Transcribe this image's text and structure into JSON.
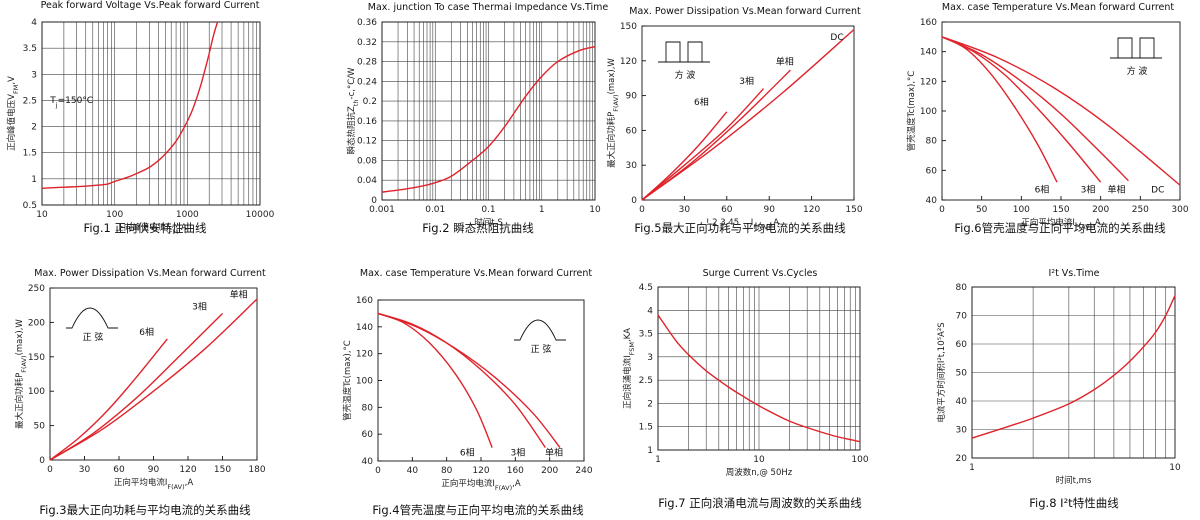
{
  "chart_data": [
    {
      "id": "fig1",
      "type": "line",
      "title": "Peak forward Voltage Vs.Peak forward Current",
      "caption": "Fig.1 正向伏安特性曲线",
      "xlabel": "正向峰值电流I",
      "xlabel_sub": "FM",
      "xlabel_suffix": ",A",
      "ylabel": "正向峰值电压V",
      "ylabel_sub": "FM",
      "ylabel_suffix": ",V",
      "xscale": "log",
      "xlim": [
        10,
        10000
      ],
      "ylim": [
        0.5,
        4
      ],
      "x_ticks": [
        10,
        100,
        1000,
        10000
      ],
      "x_tick_labels": [
        "10",
        "100",
        "1000",
        "10000"
      ],
      "y_ticks": [
        0.5,
        1,
        1.5,
        2,
        2.5,
        3,
        3.5,
        4
      ],
      "y_tick_labels": [
        "0.5",
        "1",
        "1.5",
        "2",
        "2.5",
        "3",
        "3.5",
        "4"
      ],
      "grid": true,
      "annotations": [
        {
          "text_main": "T",
          "text_sub": "j",
          "text_suffix": "=150°C",
          "x": 13,
          "y": 2.45
        }
      ],
      "series": [
        {
          "x": [
            10,
            20,
            40,
            60,
            80,
            100,
            150,
            200,
            300,
            400,
            500,
            600,
            700,
            800,
            1000,
            1200,
            1500,
            1800,
            2000,
            2300,
            2600
          ],
          "y": [
            0.82,
            0.84,
            0.86,
            0.88,
            0.9,
            0.95,
            1.03,
            1.1,
            1.22,
            1.35,
            1.48,
            1.6,
            1.72,
            1.85,
            2.1,
            2.35,
            2.75,
            3.15,
            3.4,
            3.75,
            4.0
          ]
        }
      ]
    },
    {
      "id": "fig2",
      "type": "line",
      "title": "Max. junction To case Thermai Impedance Vs.Time",
      "caption": "Fig.2 瞬态热阻抗曲线",
      "xlabel": "时间t,S",
      "xlabel_sub": "",
      "xlabel_suffix": "",
      "ylabel": "瞬态热阻抗Z",
      "ylabel_sub": "th",
      "ylabel_suffix": "-c,°C/W",
      "xscale": "log",
      "xlim": [
        0.001,
        10
      ],
      "ylim": [
        0,
        0.36
      ],
      "x_ticks": [
        0.001,
        0.01,
        0.1,
        1,
        10
      ],
      "x_tick_labels": [
        "0.001",
        "0.01",
        "0.1",
        "1",
        "10"
      ],
      "y_ticks": [
        0,
        0.04,
        0.08,
        0.12,
        0.16,
        0.2,
        0.24,
        0.28,
        0.32,
        0.36
      ],
      "y_tick_labels": [
        "0",
        "0.04",
        "0.08",
        "0.12",
        "0.16",
        "0.2",
        "0.24",
        "0.28",
        "0.32",
        "0.36"
      ],
      "grid": true,
      "annotations": [],
      "series": [
        {
          "x": [
            0.001,
            0.002,
            0.005,
            0.01,
            0.02,
            0.05,
            0.1,
            0.2,
            0.5,
            1,
            2,
            5,
            10
          ],
          "y": [
            0.016,
            0.02,
            0.027,
            0.035,
            0.048,
            0.08,
            0.108,
            0.148,
            0.21,
            0.25,
            0.28,
            0.302,
            0.31
          ]
        }
      ]
    },
    {
      "id": "fig5",
      "type": "line",
      "title": "Max. Power Dissipation Vs.Mean forward Current",
      "caption": "Fig.5最大正向功耗与平均电流的关系曲线",
      "xlabel": "I",
      "xlabel_sub": "F(AV)",
      "xlabel_suffix": ",A",
      "xlabel_prefix": "! 2 3 45",
      "ylabel": "最大正向功耗P",
      "ylabel_sub": "F(AV)",
      "ylabel_suffix": "(max),W",
      "xscale": "linear",
      "xlim": [
        0,
        150
      ],
      "ylim": [
        0,
        150
      ],
      "x_ticks": [
        0,
        30,
        60,
        90,
        120,
        150
      ],
      "x_tick_labels": [
        "0",
        "30",
        "60",
        "90",
        "120",
        "150"
      ],
      "y_ticks": [
        0,
        30,
        60,
        90,
        120,
        150
      ],
      "y_tick_labels": [
        "0",
        "30",
        "60",
        "90",
        "120",
        "150"
      ],
      "grid": false,
      "inset": {
        "kind": "square",
        "label": "方  波",
        "corner": "top-left"
      },
      "series": [
        {
          "name": "6相",
          "x": [
            0,
            20,
            40,
            60
          ],
          "y": [
            0,
            22,
            47,
            76
          ],
          "lx": 42,
          "ly": 82
        },
        {
          "name": "3相",
          "x": [
            0,
            30,
            60,
            86
          ],
          "y": [
            0,
            30,
            62,
            96
          ],
          "lx": 74,
          "ly": 100
        },
        {
          "name": "单相",
          "x": [
            0,
            35,
            70,
            105
          ],
          "y": [
            0,
            32,
            70,
            112
          ],
          "lx": 101,
          "ly": 117
        },
        {
          "name": "DC",
          "x": [
            0,
            50,
            100,
            150
          ],
          "y": [
            0,
            44,
            93,
            147
          ],
          "lx": 138,
          "ly": 138
        }
      ]
    },
    {
      "id": "fig6",
      "type": "line",
      "title": "Max. case Temperature Vs.Mean forward Current",
      "caption": "Fig.6管壳温度与正向平均电流的关系曲线",
      "xlabel": "正向平均电流I",
      "xlabel_sub": "F(AV)",
      "xlabel_suffix": ",A",
      "ylabel": "管壳温度Tc(max),°C",
      "ylabel_sub": "",
      "ylabel_suffix": "",
      "xscale": "linear",
      "xlim": [
        0,
        300
      ],
      "ylim": [
        40,
        160
      ],
      "x_ticks": [
        0,
        50,
        100,
        150,
        200,
        250,
        300
      ],
      "x_tick_labels": [
        "0",
        "50",
        "100",
        "150",
        "200",
        "250",
        "300"
      ],
      "y_ticks": [
        40,
        60,
        80,
        100,
        120,
        140,
        160
      ],
      "y_tick_labels": [
        "40",
        "60",
        "80",
        "100",
        "120",
        "140",
        "160"
      ],
      "grid": false,
      "inset": {
        "kind": "square",
        "label": "方  波",
        "corner": "top-right"
      },
      "series": [
        {
          "name": "6相",
          "x": [
            0,
            30,
            60,
            90,
            120,
            145
          ],
          "y": [
            150,
            142,
            126,
            104,
            78,
            52
          ],
          "lx": 126,
          "ly": 45
        },
        {
          "name": "3相",
          "x": [
            0,
            40,
            80,
            120,
            160,
            200
          ],
          "y": [
            150,
            140,
            124,
            102,
            78,
            52
          ],
          "lx": 184,
          "ly": 45
        },
        {
          "name": "单相",
          "x": [
            0,
            50,
            100,
            150,
            200,
            235
          ],
          "y": [
            150,
            138,
            120,
            98,
            72,
            53
          ],
          "lx": 220,
          "ly": 45
        },
        {
          "name": "DC",
          "x": [
            0,
            70,
            140,
            210,
            300
          ],
          "y": [
            150,
            136,
            116,
            90,
            50
          ],
          "lx": 272,
          "ly": 45
        }
      ]
    },
    {
      "id": "fig3",
      "type": "line",
      "title": "Max. Power Dissipation Vs.Mean forward Current",
      "caption": "Fig.3最大正向功耗与平均电流的关系曲线",
      "xlabel": "正向平均电流I",
      "xlabel_sub": "F(AV)",
      "xlabel_suffix": ",A",
      "ylabel": "最大正向功耗P",
      "ylabel_sub": "F(AV)",
      "ylabel_suffix": "(max),W",
      "xscale": "linear",
      "xlim": [
        0,
        180
      ],
      "ylim": [
        0,
        250
      ],
      "x_ticks": [
        0,
        30,
        60,
        90,
        120,
        150,
        180
      ],
      "x_tick_labels": [
        "0",
        "30",
        "60",
        "90",
        "120",
        "150",
        "180"
      ],
      "y_ticks": [
        0,
        50,
        100,
        150,
        200,
        250
      ],
      "y_tick_labels": [
        "0",
        "50",
        "100",
        "150",
        "200",
        "250"
      ],
      "grid": false,
      "inset": {
        "kind": "sine",
        "label": "正  弦",
        "corner": "top-left"
      },
      "series": [
        {
          "name": "6相",
          "x": [
            0,
            25,
            50,
            75,
            102
          ],
          "y": [
            0,
            32,
            72,
            120,
            176
          ],
          "lx": 84,
          "ly": 182
        },
        {
          "name": "3相",
          "x": [
            0,
            37,
            75,
            112,
            150
          ],
          "y": [
            0,
            38,
            90,
            150,
            213
          ],
          "lx": 130,
          "ly": 219
        },
        {
          "name": "单相",
          "x": [
            0,
            45,
            90,
            135,
            180
          ],
          "y": [
            0,
            44,
            100,
            162,
            234
          ],
          "lx": 164,
          "ly": 236
        }
      ]
    },
    {
      "id": "fig4",
      "type": "line",
      "title": "Max. case Temperature Vs.Mean forward Current",
      "caption": "Fig.4管壳温度与正向平均电流的关系曲线",
      "xlabel": "正向平均电流I",
      "xlabel_sub": "F(AV)",
      "xlabel_suffix": ",A",
      "ylabel": "管壳温度Tc(max),°C",
      "ylabel_sub": "",
      "ylabel_suffix": "",
      "xscale": "linear",
      "xlim": [
        0,
        240
      ],
      "ylim": [
        40,
        160
      ],
      "x_ticks": [
        0,
        40,
        80,
        120,
        160,
        200,
        240
      ],
      "x_tick_labels": [
        "0",
        "40",
        "80",
        "120",
        "160",
        "200",
        "240"
      ],
      "y_ticks": [
        40,
        60,
        80,
        100,
        120,
        140,
        160
      ],
      "y_tick_labels": [
        "40",
        "60",
        "80",
        "100",
        "120",
        "140",
        "160"
      ],
      "grid": false,
      "inset": {
        "kind": "sine",
        "label": "正  弦",
        "corner": "top-right"
      },
      "series": [
        {
          "name": "6相",
          "x": [
            0,
            30,
            60,
            90,
            115,
            133
          ],
          "y": [
            150,
            143,
            128,
            105,
            78,
            50
          ],
          "lx": 104,
          "ly": 44
        },
        {
          "name": "3相",
          "x": [
            0,
            40,
            80,
            120,
            160,
            195
          ],
          "y": [
            150,
            142,
            128,
            108,
            82,
            50
          ],
          "lx": 163,
          "ly": 44
        },
        {
          "name": "单相",
          "x": [
            0,
            45,
            90,
            135,
            180,
            212
          ],
          "y": [
            150,
            140,
            124,
            103,
            76,
            50
          ],
          "lx": 205,
          "ly": 44
        }
      ]
    },
    {
      "id": "fig7",
      "type": "line",
      "title": "Surge Current Vs.Cycles",
      "caption": "Fig.7 正向浪涌电流与周波数的关系曲线",
      "xlabel": "周波数n,@ 50Hz",
      "xlabel_sub": "",
      "xlabel_suffix": "",
      "ylabel": "正向浪涌电流I",
      "ylabel_sub": "FSM",
      "ylabel_suffix": ",KA",
      "xscale": "log",
      "xlim": [
        1,
        100
      ],
      "ylim": [
        1,
        4.5
      ],
      "x_ticks": [
        1,
        10,
        100
      ],
      "x_tick_labels": [
        "1",
        "10",
        "100"
      ],
      "y_ticks": [
        1,
        1.5,
        2,
        2.5,
        3,
        3.5,
        4,
        4.5
      ],
      "y_tick_labels": [
        "1",
        "1.5",
        "2",
        "2.5",
        "3",
        "3.5",
        "4",
        "4.5"
      ],
      "grid": true,
      "annotations": [],
      "series": [
        {
          "x": [
            1,
            1.5,
            2,
            3,
            5,
            7,
            10,
            15,
            20,
            30,
            50,
            70,
            100
          ],
          "y": [
            3.9,
            3.35,
            3.05,
            2.7,
            2.35,
            2.15,
            1.95,
            1.75,
            1.62,
            1.48,
            1.33,
            1.25,
            1.18
          ]
        }
      ]
    },
    {
      "id": "fig8",
      "type": "line",
      "title": "I²t  Vs.Time",
      "caption": "Fig.8 I²t特性曲线",
      "xlabel": "时间t,ms",
      "xlabel_sub": "",
      "xlabel_suffix": "",
      "ylabel": "电流平方时间积I²t,10⁵A²S",
      "ylabel_sub": "",
      "ylabel_suffix": "",
      "xscale": "log",
      "xlim": [
        1,
        10
      ],
      "ylim": [
        20,
        80
      ],
      "x_ticks": [
        1,
        10
      ],
      "x_tick_labels": [
        "1",
        "10"
      ],
      "y_ticks": [
        20,
        30,
        40,
        50,
        60,
        70,
        80
      ],
      "y_tick_labels": [
        "20",
        "30",
        "40",
        "50",
        "60",
        "70",
        "80"
      ],
      "grid": true,
      "annotations": [],
      "series": [
        {
          "x": [
            1,
            1.5,
            2,
            3,
            4,
            5,
            6,
            7,
            8,
            9,
            10
          ],
          "y": [
            27,
            31,
            34,
            39,
            44,
            49,
            54,
            59,
            64,
            70,
            77
          ]
        }
      ]
    }
  ]
}
